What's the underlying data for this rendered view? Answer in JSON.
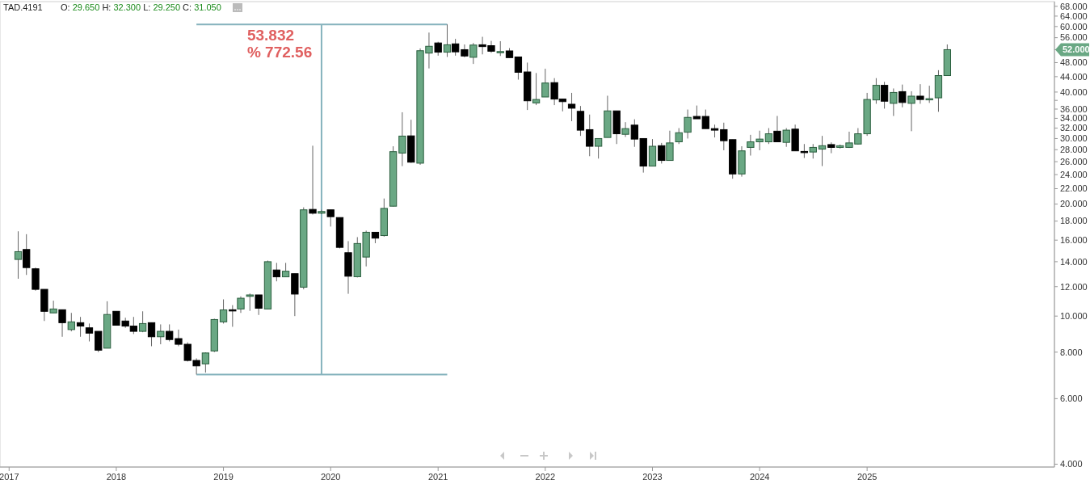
{
  "chart_data": {
    "type": "candlestick",
    "title": "TAD.4191",
    "subtitle": "O: 29.650 H: 32.300 L: 29.250 C: 31.050",
    "annotations": [
      "53.832",
      "% 772.56",
      "52.000"
    ],
    "x": [
      "2017-02",
      "2017-03",
      "2017-04",
      "2017-05",
      "2017-06",
      "2017-07",
      "2017-08",
      "2017-09",
      "2017-10",
      "2017-11",
      "2017-12",
      "2018-01",
      "2018-02",
      "2018-03",
      "2018-04",
      "2018-05",
      "2018-06",
      "2018-07",
      "2018-08",
      "2018-09",
      "2018-10",
      "2018-11",
      "2018-12",
      "2019-01",
      "2019-02",
      "2019-03",
      "2019-04",
      "2019-05",
      "2019-06",
      "2019-07",
      "2019-08",
      "2019-09",
      "2019-10",
      "2019-11",
      "2019-12",
      "2020-01",
      "2020-02",
      "2020-03",
      "2020-04",
      "2020-05",
      "2020-06",
      "2020-07",
      "2020-08",
      "2020-09",
      "2020-10",
      "2020-11",
      "2020-12",
      "2021-01",
      "2021-02",
      "2021-03",
      "2021-04",
      "2021-05",
      "2021-06",
      "2021-07",
      "2021-08",
      "2021-09",
      "2021-10",
      "2021-11",
      "2021-12",
      "2022-01",
      "2022-02",
      "2022-03",
      "2022-04",
      "2022-05",
      "2022-06",
      "2022-07",
      "2022-08",
      "2022-09",
      "2022-10",
      "2022-11",
      "2022-12",
      "2023-01",
      "2023-02",
      "2023-03",
      "2023-04",
      "2023-05",
      "2023-06",
      "2023-07",
      "2023-08",
      "2023-09",
      "2023-10",
      "2023-11",
      "2023-12",
      "2024-01",
      "2024-02",
      "2024-03",
      "2024-04",
      "2024-05",
      "2024-06",
      "2024-07",
      "2024-08",
      "2024-09",
      "2024-10",
      "2024-11",
      "2024-12",
      "2025-01",
      "2025-02",
      "2025-03",
      "2025-04",
      "2025-05",
      "2025-06",
      "2025-07",
      "2025-08",
      "2025-09",
      "2025-10"
    ],
    "ohlc": [
      [
        14.2,
        16.9,
        12.6,
        14.9
      ],
      [
        15.1,
        16.6,
        12.9,
        13.5
      ],
      [
        13.4,
        13.5,
        11.7,
        11.8
      ],
      [
        11.8,
        11.8,
        9.7,
        10.3
      ],
      [
        10.2,
        11.0,
        10.2,
        10.45
      ],
      [
        10.4,
        10.4,
        8.8,
        9.6
      ],
      [
        9.2,
        10.2,
        9.1,
        9.65
      ],
      [
        9.6,
        9.95,
        8.8,
        9.4
      ],
      [
        9.3,
        9.55,
        8.55,
        9.0
      ],
      [
        9.1,
        9.1,
        8.0,
        8.1
      ],
      [
        8.2,
        10.96,
        8.2,
        10.1
      ],
      [
        10.3,
        10.3,
        9.45,
        9.45
      ],
      [
        9.7,
        9.9,
        9.3,
        9.4
      ],
      [
        9.4,
        9.95,
        8.95,
        9.1
      ],
      [
        9.1,
        10.3,
        9.05,
        9.55
      ],
      [
        9.6,
        9.6,
        8.3,
        8.8
      ],
      [
        8.8,
        9.5,
        8.4,
        9.1
      ],
      [
        9.1,
        9.5,
        8.55,
        8.65
      ],
      [
        8.7,
        9.2,
        8.3,
        8.4
      ],
      [
        8.4,
        8.5,
        7.55,
        7.6
      ],
      [
        7.6,
        7.7,
        6.968,
        7.35
      ],
      [
        7.44,
        7.99,
        7.05,
        7.96
      ],
      [
        8.06,
        9.84,
        8.0,
        9.79
      ],
      [
        9.65,
        11.09,
        9.55,
        10.39
      ],
      [
        10.4,
        10.7,
        9.36,
        10.37
      ],
      [
        10.45,
        11.3,
        10.2,
        11.17
      ],
      [
        11.3,
        11.5,
        10.33,
        11.4
      ],
      [
        11.4,
        11.4,
        10.07,
        10.5
      ],
      [
        10.45,
        14.1,
        10.45,
        14.0
      ],
      [
        13.3,
        13.9,
        12.4,
        12.75
      ],
      [
        12.75,
        13.9,
        12.75,
        13.2
      ],
      [
        13.0,
        13.0,
        10.0,
        11.46
      ],
      [
        11.96,
        19.6,
        11.8,
        19.3
      ],
      [
        19.35,
        28.7,
        18.75,
        18.9
      ],
      [
        18.9,
        19.3,
        18.8,
        19.1
      ],
      [
        19.3,
        19.3,
        17.4,
        18.5
      ],
      [
        18.4,
        18.4,
        15.2,
        15.3
      ],
      [
        14.8,
        15.9,
        11.48,
        12.8
      ],
      [
        12.76,
        16.3,
        12.7,
        15.67
      ],
      [
        14.41,
        16.97,
        13.6,
        16.8
      ],
      [
        16.8,
        16.8,
        15.7,
        16.2
      ],
      [
        16.46,
        20.7,
        16.35,
        19.47
      ],
      [
        19.74,
        28.6,
        19.7,
        27.66
      ],
      [
        27.42,
        35.3,
        25.3,
        30.46
      ],
      [
        30.5,
        33.7,
        25.8,
        25.92
      ],
      [
        25.76,
        52.4,
        25.5,
        51.66
      ],
      [
        50.9,
        57.8,
        46.3,
        53.1
      ],
      [
        54.2,
        54.6,
        50.1,
        51.2
      ],
      [
        51.2,
        60.8,
        49.7,
        53.6
      ],
      [
        53.9,
        55.6,
        50.1,
        51.3
      ],
      [
        52.0,
        53.7,
        49.6,
        50.0
      ],
      [
        49.6,
        54.2,
        47.6,
        53.5
      ],
      [
        53.6,
        56.3,
        50.5,
        53.0
      ],
      [
        53.3,
        54.9,
        51.0,
        51.5
      ],
      [
        51.2,
        54.8,
        50.0,
        51.4
      ],
      [
        51.6,
        52.5,
        49.5,
        49.5
      ],
      [
        49.7,
        49.7,
        43.2,
        45.2
      ],
      [
        45.3,
        48.0,
        35.8,
        37.9
      ],
      [
        37.4,
        45.0,
        36.9,
        38.2
      ],
      [
        38.8,
        46.2,
        38.8,
        42.3
      ],
      [
        42.4,
        43.6,
        36.9,
        38.3
      ],
      [
        38.3,
        38.3,
        35.5,
        37.7
      ],
      [
        37.1,
        39.8,
        33.4,
        36.2
      ],
      [
        35.5,
        36.7,
        30.5,
        31.6
      ],
      [
        31.7,
        34.8,
        26.9,
        28.6
      ],
      [
        28.6,
        30.0,
        26.5,
        30.0
      ],
      [
        30.2,
        39.1,
        30.2,
        35.6
      ],
      [
        35.6,
        35.6,
        29.0,
        30.9
      ],
      [
        30.8,
        33.2,
        30.3,
        31.9
      ],
      [
        32.6,
        33.8,
        28.5,
        29.9
      ],
      [
        30.0,
        30.0,
        24.3,
        25.3
      ],
      [
        25.3,
        29.9,
        25.3,
        28.6
      ],
      [
        28.7,
        29.2,
        25.7,
        26.2
      ],
      [
        26.2,
        31.5,
        26.2,
        29.2
      ],
      [
        29.4,
        32.0,
        29.0,
        31.1
      ],
      [
        31.2,
        35.9,
        30.0,
        34.2
      ],
      [
        34.4,
        36.8,
        33.9,
        33.9
      ],
      [
        34.4,
        35.9,
        31.9,
        31.9
      ],
      [
        31.9,
        32.7,
        30.2,
        31.6
      ],
      [
        31.7,
        33.1,
        27.9,
        29.6
      ],
      [
        29.8,
        29.8,
        23.4,
        24.1
      ],
      [
        24.1,
        28.6,
        23.7,
        27.8
      ],
      [
        28.4,
        30.7,
        27.0,
        29.4
      ],
      [
        29.4,
        31.5,
        27.9,
        29.9
      ],
      [
        29.4,
        32.0,
        29.0,
        30.9
      ],
      [
        31.4,
        34.5,
        29.4,
        29.4
      ],
      [
        29.3,
        32.0,
        28.5,
        31.6
      ],
      [
        31.8,
        32.7,
        27.8,
        27.8
      ],
      [
        27.7,
        29.0,
        26.6,
        27.5
      ],
      [
        27.6,
        29.0,
        26.5,
        28.4
      ],
      [
        28.1,
        30.5,
        25.3,
        28.7
      ],
      [
        28.9,
        29.3,
        27.4,
        28.4
      ],
      [
        28.4,
        28.9,
        28.2,
        28.7
      ],
      [
        28.4,
        31.3,
        28.3,
        29.2
      ],
      [
        29.0,
        32.0,
        28.9,
        30.9
      ],
      [
        30.9,
        39.8,
        30.5,
        38.2
      ],
      [
        38.1,
        43.6,
        37.2,
        41.7
      ],
      [
        41.7,
        42.6,
        36.1,
        37.8
      ],
      [
        37.3,
        40.9,
        34.5,
        39.9
      ],
      [
        40.1,
        41.9,
        36.4,
        37.5
      ],
      [
        37.3,
        40.2,
        31.4,
        39.0
      ],
      [
        39.0,
        42.0,
        37.2,
        38.2
      ],
      [
        38.2,
        41.6,
        37.4,
        38.4
      ],
      [
        38.6,
        45.8,
        35.4,
        44.3
      ],
      [
        44.3,
        53.7,
        44.3,
        52.0
      ]
    ],
    "colors": [
      "#6aa884",
      "#000000",
      "#000000",
      "#000000",
      "#6aa884",
      "#000000",
      "#6aa884",
      "#000000",
      "#000000",
      "#000000",
      "#6aa884",
      "#000000",
      "#000000",
      "#000000",
      "#6aa884",
      "#000000",
      "#6aa884",
      "#000000",
      "#000000",
      "#000000",
      "#000000",
      "#6aa884",
      "#6aa884",
      "#6aa884",
      "#000000",
      "#6aa884",
      "#6aa884",
      "#000000",
      "#6aa884",
      "#000000",
      "#6aa884",
      "#000000",
      "#6aa884",
      "#000000",
      "#6aa884",
      "#000000",
      "#000000",
      "#000000",
      "#6aa884",
      "#6aa884",
      "#000000",
      "#6aa884",
      "#6aa884",
      "#6aa884",
      "#000000",
      "#6aa884",
      "#6aa884",
      "#000000",
      "#6aa884",
      "#000000",
      "#000000",
      "#6aa884",
      "#000000",
      "#000000",
      "#6aa884",
      "#000000",
      "#000000",
      "#000000",
      "#6aa884",
      "#6aa884",
      "#000000",
      "#000000",
      "#000000",
      "#000000",
      "#000000",
      "#6aa884",
      "#6aa884",
      "#000000",
      "#6aa884",
      "#000000",
      "#000000",
      "#6aa884",
      "#000000",
      "#6aa884",
      "#6aa884",
      "#6aa884",
      "#000000",
      "#000000",
      "#000000",
      "#000000",
      "#000000",
      "#6aa884",
      "#6aa884",
      "#6aa884",
      "#6aa884",
      "#000000",
      "#6aa884",
      "#000000",
      "#000000",
      "#6aa884",
      "#6aa884",
      "#000000",
      "#6aa884",
      "#6aa884",
      "#6aa884",
      "#6aa884",
      "#6aa884",
      "#000000",
      "#6aa884",
      "#000000",
      "#6aa884",
      "#000000",
      "#6aa884",
      "#6aa884",
      "#6aa884"
    ],
    "log": true,
    "xlim": [
      "2016-12",
      "2026-10"
    ],
    "xticks": [
      "2017",
      "2018",
      "2019",
      "2020",
      "2021",
      "2022",
      "2023",
      "2024",
      "2025"
    ],
    "ylim": [
      3.93,
      70
    ],
    "yticks": [
      {
        "value": 4,
        "label": "4.000"
      },
      {
        "value": 6,
        "label": "6.000"
      },
      {
        "value": 8,
        "label": "8.000"
      },
      {
        "value": 10,
        "label": "10.000"
      },
      {
        "value": 12,
        "label": "12.000"
      },
      {
        "value": 14,
        "label": "14.000"
      },
      {
        "value": 16,
        "label": "16.000"
      },
      {
        "value": 18,
        "label": "18.000"
      },
      {
        "value": 20,
        "label": "20.000"
      },
      {
        "value": 22,
        "label": "22.000"
      },
      {
        "value": 24,
        "label": "24.000"
      },
      {
        "value": 26,
        "label": "26.000"
      },
      {
        "value": 28,
        "label": "28.000"
      },
      {
        "value": 30,
        "label": "30.000"
      },
      {
        "value": 32,
        "label": "32.000"
      },
      {
        "value": 34,
        "label": "34.000"
      },
      {
        "value": 36,
        "label": "36.000"
      },
      {
        "value": 38,
        "label": null
      },
      {
        "value": 40,
        "label": "40.000"
      },
      {
        "value": 44,
        "label": "44.000"
      },
      {
        "value": 48,
        "label": "48.000"
      },
      {
        "value": 52,
        "label": null
      },
      {
        "value": 56,
        "label": "56.000"
      },
      {
        "value": 60,
        "label": "60.000"
      },
      {
        "value": 64,
        "label": "64.000"
      },
      {
        "value": 68,
        "label": "68.000"
      }
    ],
    "series": [
      {
        "type": "line",
        "color": "#86b3bd",
        "x": [
          "2019-12-01",
          "2019-12-01"
        ],
        "values": [
          6.968,
          60.8
        ]
      }
    ],
    "grid": false
  }
}
